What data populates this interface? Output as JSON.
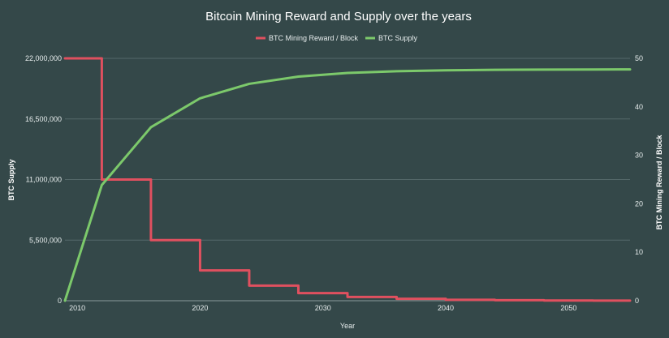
{
  "chart_data": {
    "type": "line",
    "title": "Bitcoin Mining Reward and Supply over the years",
    "xlabel": "Year",
    "ylabel_left": "BTC Supply",
    "ylabel_right": "BTC Mining Reward / Block",
    "xlim": [
      2009,
      2055
    ],
    "ylim_left": [
      0,
      22000000
    ],
    "ylim_right": [
      0,
      50
    ],
    "x_ticks": [
      "2010",
      "2020",
      "2030",
      "2040",
      "2050"
    ],
    "y_left_ticks": [
      "0",
      "5,500,000",
      "11,000,000",
      "16,500,000",
      "22,000,000"
    ],
    "y_right_ticks": [
      "0",
      "10",
      "20",
      "30",
      "40",
      "50"
    ],
    "grid": true,
    "legend_position": "top-center",
    "series": [
      {
        "name": "BTC Mining Reward / Block",
        "axis": "right",
        "color": "#e0505f",
        "step": true,
        "x": [
          2009,
          2012,
          2016,
          2020,
          2024,
          2028,
          2032,
          2036,
          2040,
          2044,
          2048,
          2052,
          2055
        ],
        "values": [
          50,
          25,
          12.5,
          6.25,
          3.125,
          1.5625,
          0.78125,
          0.390625,
          0.1953125,
          0.09765625,
          0.048828125,
          0.0244140625,
          0.0244140625
        ]
      },
      {
        "name": "BTC Supply",
        "axis": "left",
        "color": "#7cc96b",
        "step": false,
        "x": [
          2009,
          2012,
          2016,
          2020,
          2024,
          2028,
          2032,
          2036,
          2040,
          2044,
          2048,
          2052,
          2055
        ],
        "values": [
          0,
          10500000,
          15750000,
          18375000,
          19687500,
          20343750,
          20671875,
          20835938,
          20917969,
          20958984,
          20979492,
          20989746,
          20994873
        ]
      }
    ]
  }
}
